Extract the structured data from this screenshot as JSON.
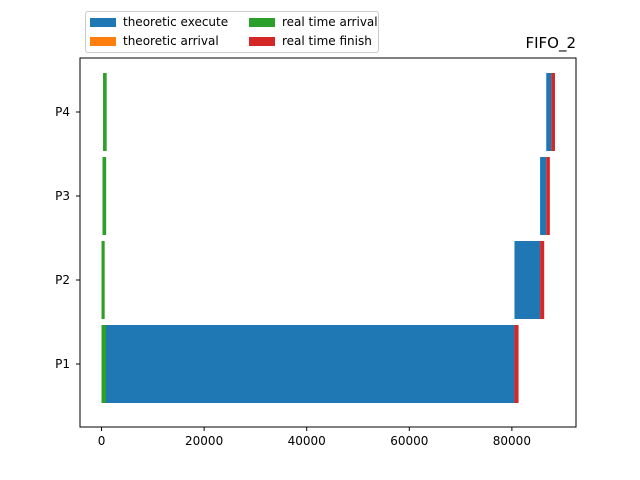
{
  "chart_data": {
    "type": "bar",
    "orientation": "horizontal",
    "title": "FIFO_2",
    "xlabel": "",
    "ylabel": "",
    "xlim": [
      -4200,
      92500
    ],
    "x_ticks": [
      0,
      20000,
      40000,
      60000,
      80000
    ],
    "x_tick_labels": [
      "0",
      "20000",
      "40000",
      "60000",
      "80000"
    ],
    "categories": [
      "P1",
      "P2",
      "P3",
      "P4"
    ],
    "grid": false,
    "legend_position": "top-left, above plot",
    "series": [
      {
        "name": "theoretic execute",
        "color": "#1f77b4",
        "segments": [
          {
            "category": "P1",
            "start": 0,
            "end": 80500
          },
          {
            "category": "P2",
            "start": 80500,
            "end": 85500
          },
          {
            "category": "P3",
            "start": 85500,
            "end": 86700
          },
          {
            "category": "P4",
            "start": 86700,
            "end": 87700
          }
        ]
      },
      {
        "name": "theoretic arrival",
        "color": "#ff7f0e",
        "segments": [
          {
            "category": "P1",
            "start": 0,
            "end": 600
          },
          {
            "category": "P2",
            "start": 0,
            "end": 600
          },
          {
            "category": "P3",
            "start": 200,
            "end": 800
          },
          {
            "category": "P4",
            "start": 300,
            "end": 900
          }
        ]
      },
      {
        "name": "real time arrival",
        "color": "#2ca02c",
        "segments": [
          {
            "category": "P1",
            "start": 0,
            "end": 900
          },
          {
            "category": "P2",
            "start": 0,
            "end": 600
          },
          {
            "category": "P3",
            "start": 200,
            "end": 900
          },
          {
            "category": "P4",
            "start": 300,
            "end": 1000
          }
        ]
      },
      {
        "name": "real time finish",
        "color": "#d62728",
        "segments": [
          {
            "category": "P1",
            "start": 80500,
            "end": 81300
          },
          {
            "category": "P2",
            "start": 85500,
            "end": 86300
          },
          {
            "category": "P3",
            "start": 86700,
            "end": 87400
          },
          {
            "category": "P4",
            "start": 87700,
            "end": 88400
          }
        ]
      }
    ]
  }
}
